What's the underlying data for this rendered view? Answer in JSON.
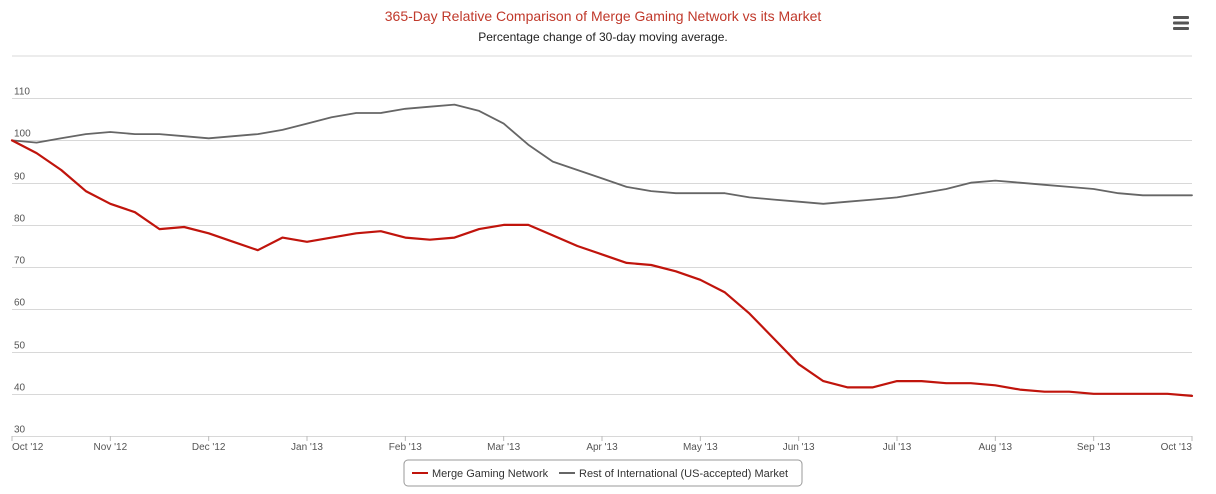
{
  "chart_data": {
    "type": "line",
    "title": "365-Day Relative Comparison of Merge Gaming Network vs its Market",
    "subtitle": "Percentage change of 30-day moving average.",
    "xlabel": "",
    "ylabel": "",
    "x_tick_labels": [
      "Oct '12",
      "Nov '12",
      "Dec '12",
      "Jan '13",
      "Feb '13",
      "Mar '13",
      "Apr '13",
      "May '13",
      "Jun '13",
      "Jul '13",
      "Aug '13",
      "Sep '13",
      "Oct '13"
    ],
    "y_ticks": [
      30,
      40,
      50,
      60,
      70,
      80,
      90,
      100,
      110
    ],
    "ylim": [
      30,
      120
    ],
    "grid": "horizontal",
    "legend_position": "bottom-center",
    "x": [
      0,
      0.25,
      0.5,
      0.75,
      1,
      1.25,
      1.5,
      1.75,
      2,
      2.25,
      2.5,
      2.75,
      3,
      3.25,
      3.5,
      3.75,
      4,
      4.25,
      4.5,
      4.75,
      5,
      5.25,
      5.5,
      5.75,
      6,
      6.25,
      6.5,
      6.75,
      7,
      7.25,
      7.5,
      7.75,
      8,
      8.25,
      8.5,
      8.75,
      9,
      9.25,
      9.5,
      9.75,
      10,
      10.25,
      10.5,
      10.75,
      11,
      11.25,
      11.5,
      11.75,
      12
    ],
    "series": [
      {
        "name": "Merge Gaming Network",
        "color": "#c0140c",
        "values": [
          100,
          97,
          93,
          88,
          85,
          83,
          79,
          79.5,
          78,
          76,
          74,
          77,
          76,
          77,
          78,
          78.5,
          77,
          76.5,
          77,
          79,
          80,
          80,
          77.5,
          75,
          73,
          71,
          70.5,
          69,
          67,
          64,
          59,
          53,
          47,
          43,
          41.5,
          41.5,
          43,
          43,
          42.5,
          42.5,
          42,
          41,
          40.5,
          40.5,
          40,
          40,
          40,
          40,
          39.5
        ]
      },
      {
        "name": "Rest of International (US-accepted) Market",
        "color": "#666666",
        "values": [
          100,
          99.5,
          100.5,
          101.5,
          102,
          101.5,
          101.5,
          101,
          100.5,
          101,
          101.5,
          102.5,
          104,
          105.5,
          106.5,
          106.5,
          107.5,
          108,
          108.5,
          107,
          104,
          99,
          95,
          93,
          91,
          89,
          88,
          87.5,
          87.5,
          87.5,
          86.5,
          86,
          85.5,
          85,
          85.5,
          86,
          86.5,
          87.5,
          88.5,
          90,
          90.5,
          90,
          89.5,
          89,
          88.5,
          87.5,
          87,
          87,
          87
        ]
      }
    ]
  },
  "ui": {
    "menu_icon": "hamburger-menu-icon"
  }
}
